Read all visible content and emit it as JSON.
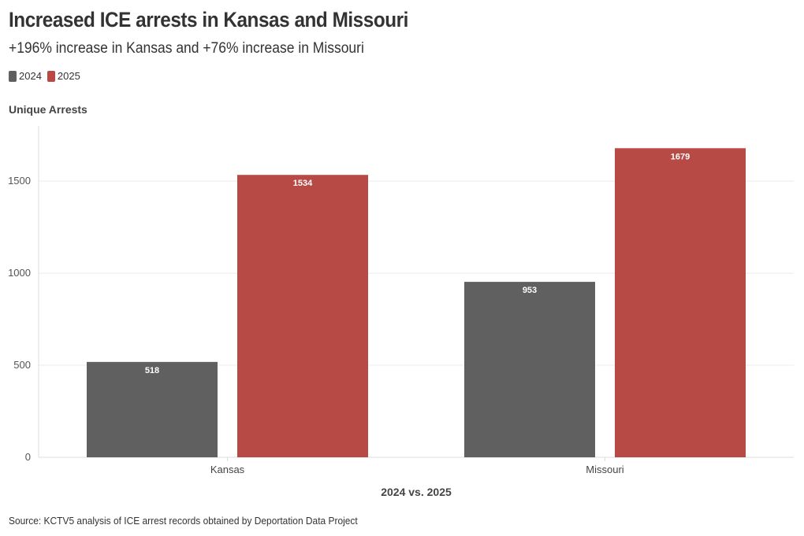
{
  "title": "Increased ICE arrests in Kansas and Missouri",
  "subtitle": "+196% increase in Kansas and +76% increase in Missouri",
  "source": "Source: KCTV5 analysis of ICE arrest records obtained by Deportation Data Project",
  "colors": {
    "series_2024": "#606060",
    "series_2025": "#b84a45",
    "grid": "#ebebeb",
    "axis": "#dddddd",
    "bar_label": "#ffffff"
  },
  "chart_data": {
    "type": "bar",
    "title": "Increased ICE arrests in Kansas and Missouri",
    "subtitle": "+196% increase in Kansas and +76% increase in Missouri",
    "xlabel": "2024 vs. 2025",
    "ylabel": "Unique Arrests",
    "categories": [
      "Kansas",
      "Missouri"
    ],
    "series": [
      {
        "name": "2024",
        "values": [
          518,
          953
        ]
      },
      {
        "name": "2025",
        "values": [
          1534,
          1679
        ]
      }
    ],
    "ylim": [
      0,
      1800
    ],
    "yticks": [
      0,
      500,
      1000,
      1500
    ],
    "grid": true,
    "legend": "top-left",
    "data_labels": true
  }
}
